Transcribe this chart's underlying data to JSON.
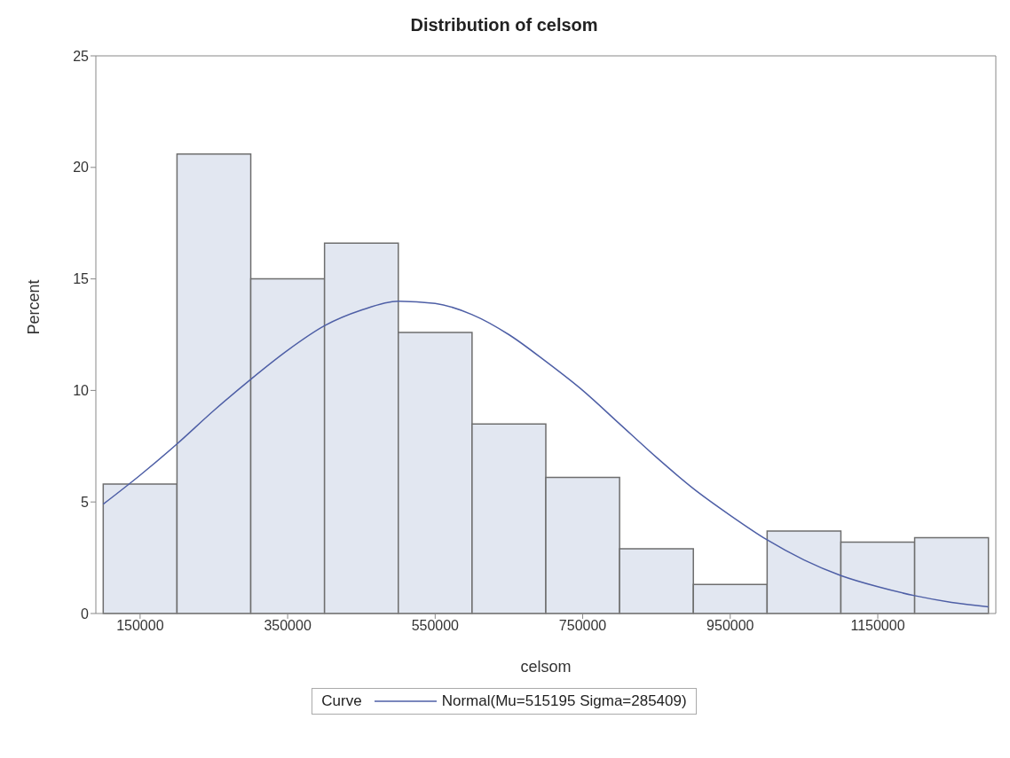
{
  "chart_data": {
    "type": "histogram",
    "title": "Distribution of celsom",
    "xlabel": "celsom",
    "ylabel": "Percent",
    "legend_title": "Curve",
    "legend": "bottom",
    "color": "#e2e7f1",
    "bins": [
      100000,
      200000,
      300000,
      400000,
      500000,
      600000,
      700000,
      800000,
      900000,
      1000000,
      1100000,
      1200000,
      1300000
    ],
    "values": [
      5.8,
      20.6,
      15.0,
      16.6,
      12.6,
      8.5,
      6.1,
      2.9,
      1.3,
      3.7,
      3.2,
      3.4
    ],
    "series": [
      {
        "type": "line",
        "name": "Normal(Mu=515195 Sigma=285409)",
        "color": "#4e5fa6",
        "x": [
          100000,
          150000,
          200000,
          250000,
          300000,
          350000,
          400000,
          450000,
          500000,
          550000,
          600000,
          650000,
          700000,
          750000,
          800000,
          850000,
          900000,
          950000,
          1000000,
          1050000,
          1100000,
          1150000,
          1200000,
          1250000,
          1300000
        ],
        "values": [
          4.9,
          6.2,
          7.6,
          9.1,
          10.5,
          11.8,
          12.9,
          13.6,
          14.0,
          13.9,
          13.4,
          12.5,
          11.3,
          10.0,
          8.5,
          7.0,
          5.6,
          4.4,
          3.3,
          2.4,
          1.7,
          1.2,
          0.8,
          0.5,
          0.3
        ]
      }
    ],
    "xlim": [
      90000,
      1310000
    ],
    "xticks": [
      150000,
      350000,
      550000,
      750000,
      950000,
      1150000
    ],
    "ylim": [
      0,
      25
    ],
    "yticks": [
      0,
      5,
      10,
      15,
      20,
      25
    ],
    "grid": false
  }
}
